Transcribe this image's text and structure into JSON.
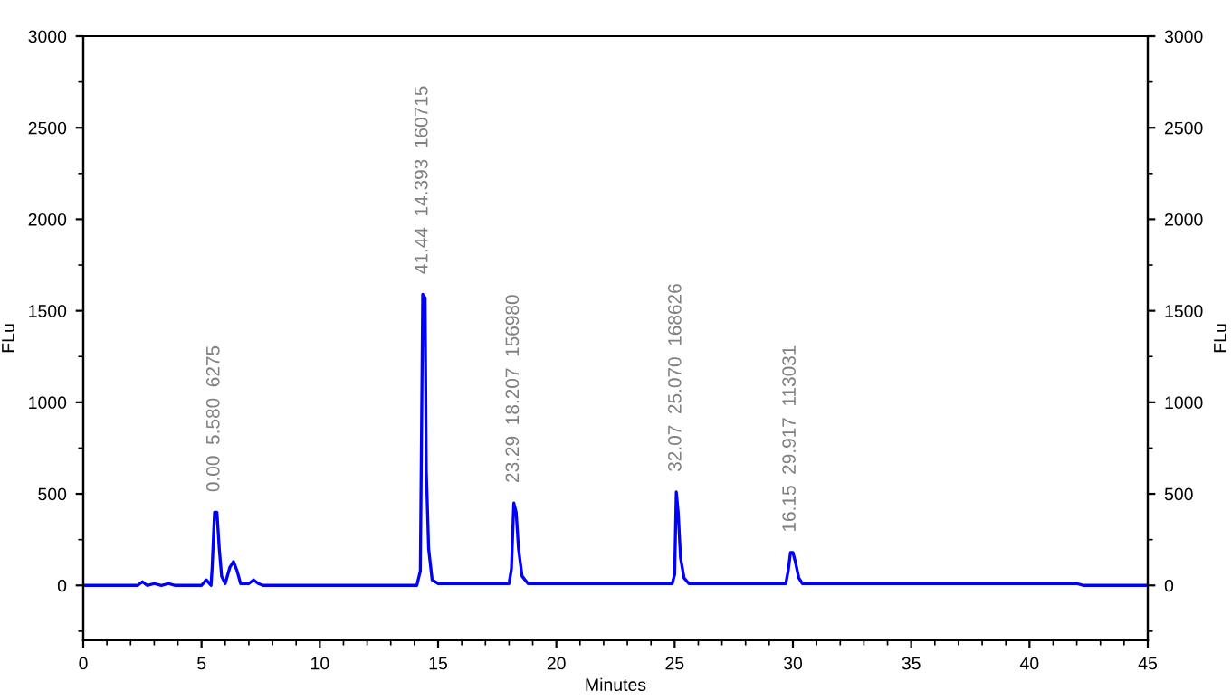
{
  "chart_data": {
    "type": "line",
    "xlabel": "Minutes",
    "ylabel": "FLu",
    "y2label": "FLu",
    "xlim": [
      0,
      45
    ],
    "xticks": [
      0,
      5,
      10,
      15,
      20,
      25,
      30,
      35,
      40,
      45
    ],
    "ylim": [
      -300,
      3000
    ],
    "yticks": [
      0,
      500,
      1000,
      1500,
      2000,
      2500,
      3000
    ],
    "y2lim": [
      -300,
      3000
    ],
    "y2ticks": [
      0,
      500,
      1000,
      1500,
      2000,
      2500,
      3000
    ],
    "grid": false,
    "legend": false,
    "marker": "none",
    "line_style": "solid",
    "series": [
      {
        "color": "#0000ff",
        "x": [
          0,
          2.3,
          2.5,
          2.7,
          3.0,
          3.3,
          3.6,
          3.9,
          5.0,
          5.2,
          5.4,
          5.45,
          5.55,
          5.65,
          5.75,
          5.85,
          6.0,
          6.2,
          6.35,
          6.5,
          6.65,
          7.0,
          7.2,
          7.4,
          7.6,
          14.1,
          14.25,
          14.35,
          14.45,
          14.5,
          14.6,
          14.75,
          15.0,
          18.0,
          18.1,
          18.2,
          18.3,
          18.4,
          18.55,
          18.8,
          24.9,
          25.0,
          25.07,
          25.15,
          25.25,
          25.4,
          25.6,
          29.7,
          29.8,
          29.9,
          30.0,
          30.1,
          30.25,
          30.4,
          42.0,
          42.3,
          45
        ],
        "values": [
          0,
          0,
          20,
          0,
          10,
          0,
          10,
          0,
          0,
          30,
          0,
          100,
          400,
          400,
          200,
          50,
          10,
          100,
          130,
          80,
          10,
          10,
          30,
          10,
          0,
          0,
          80,
          1590,
          1570,
          630,
          200,
          30,
          10,
          10,
          90,
          450,
          400,
          200,
          50,
          10,
          10,
          60,
          510,
          400,
          150,
          40,
          10,
          10,
          80,
          180,
          180,
          130,
          40,
          10,
          10,
          0,
          0
        ]
      }
    ],
    "annotations": [
      {
        "text": "0.00  5.580  6275",
        "x": 5.55,
        "y": 400
      },
      {
        "text": "41.44  14.393  160715",
        "x": 14.35,
        "y": 1590
      },
      {
        "text": "23.29  18.207  156980",
        "x": 18.2,
        "y": 450
      },
      {
        "text": "32.07  25.070  168626",
        "x": 25.07,
        "y": 510
      },
      {
        "text": "16.15  29.917  113031",
        "x": 29.9,
        "y": 180
      }
    ]
  }
}
